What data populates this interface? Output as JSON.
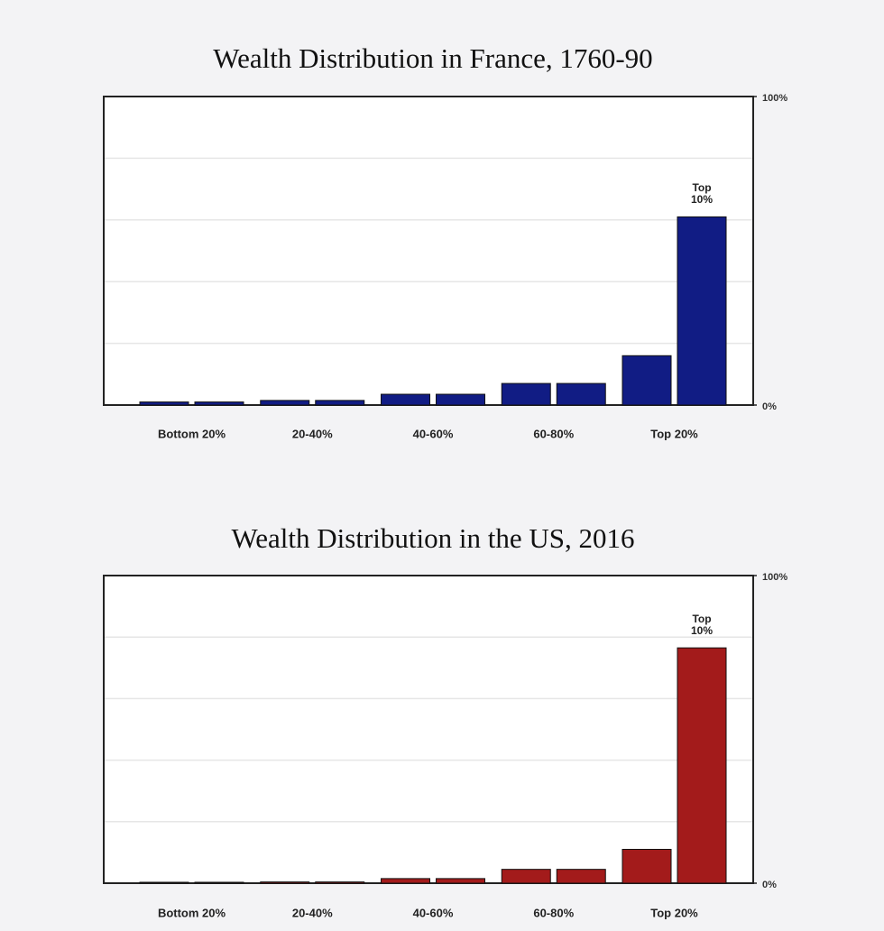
{
  "chart_data": [
    {
      "type": "bar",
      "title": "Wealth Distribution in France, 1760-90",
      "categories": [
        "Bottom 20%",
        null,
        "20-40%",
        null,
        "40-60%",
        null,
        "60-80%",
        null,
        "Top 20%",
        null
      ],
      "values": [
        1,
        1,
        1.5,
        1.5,
        3.5,
        3.5,
        7,
        7,
        16,
        61
      ],
      "annotation": "Top 10%",
      "color": "#111c84",
      "ylim": [
        0,
        100
      ],
      "yticks": [
        {
          "value": 0,
          "label": "0%"
        },
        {
          "value": 20,
          "label": null
        },
        {
          "value": 40,
          "label": null
        },
        {
          "value": 60,
          "label": null
        },
        {
          "value": 80,
          "label": null
        },
        {
          "value": 100,
          "label": "100%"
        }
      ],
      "grid": true
    },
    {
      "type": "bar",
      "title": "Wealth Distribution in the US, 2016",
      "categories": [
        "Bottom 20%",
        null,
        "20-40%",
        null,
        "40-60%",
        null,
        "60-80%",
        null,
        "Top 20%",
        null
      ],
      "values": [
        0.3,
        0.3,
        0.4,
        0.4,
        1.5,
        1.5,
        4.5,
        4.5,
        11,
        76.5
      ],
      "annotation": "Top 10%",
      "color": "#a31b1b",
      "ylim": [
        0,
        100
      ],
      "yticks": [
        {
          "value": 0,
          "label": "0%"
        },
        {
          "value": 20,
          "label": null
        },
        {
          "value": 40,
          "label": null
        },
        {
          "value": 60,
          "label": null
        },
        {
          "value": 80,
          "label": null
        },
        {
          "value": 100,
          "label": "100%"
        }
      ],
      "grid": true
    }
  ]
}
